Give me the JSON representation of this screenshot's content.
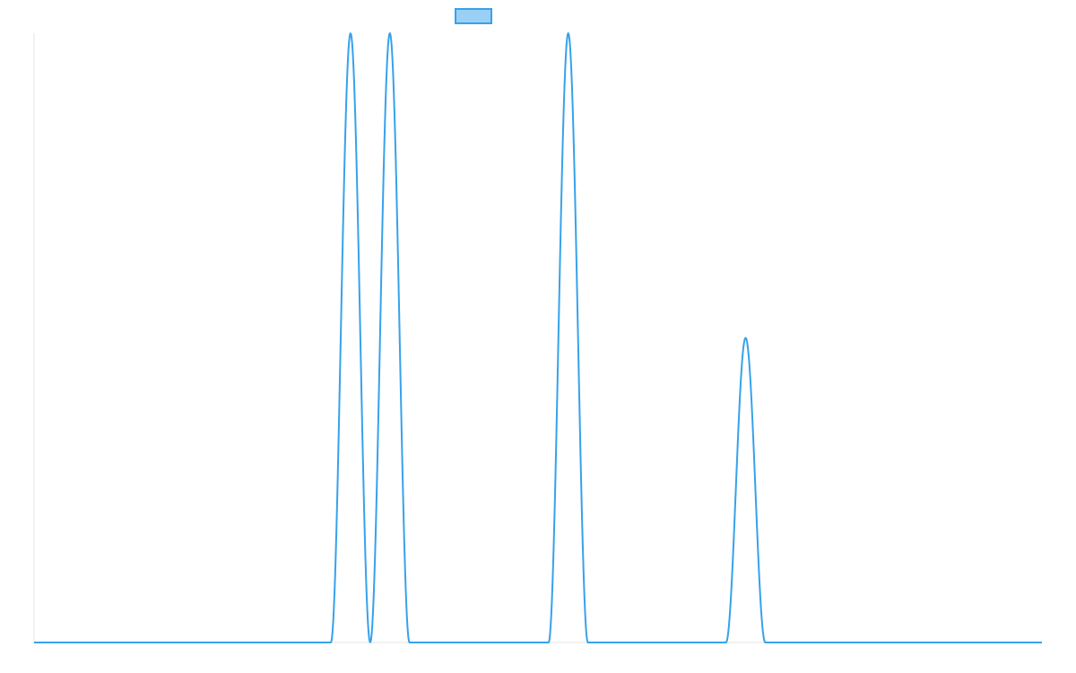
{
  "colors": {
    "series_line": "#36a2eb",
    "legend_fill": "#9ad0f5",
    "axis": "#e6e6e6",
    "background": "#ffffff"
  },
  "chart_data": {
    "type": "line",
    "title": "",
    "xlabel": "",
    "ylabel": "",
    "grid": false,
    "legend": {
      "position": "top",
      "entries": [
        {
          "name": ""
        }
      ]
    },
    "xlim": [
      0,
      100
    ],
    "ylim": [
      0,
      1
    ],
    "series": [
      {
        "name": "",
        "peaks": [
          {
            "center": 31.4,
            "half_width": 1.95,
            "height": 1.0
          },
          {
            "center": 35.3,
            "half_width": 1.95,
            "height": 1.0
          },
          {
            "center": 53.0,
            "half_width": 1.95,
            "height": 1.0
          },
          {
            "center": 70.6,
            "half_width": 1.95,
            "height": 0.5
          }
        ]
      }
    ]
  }
}
